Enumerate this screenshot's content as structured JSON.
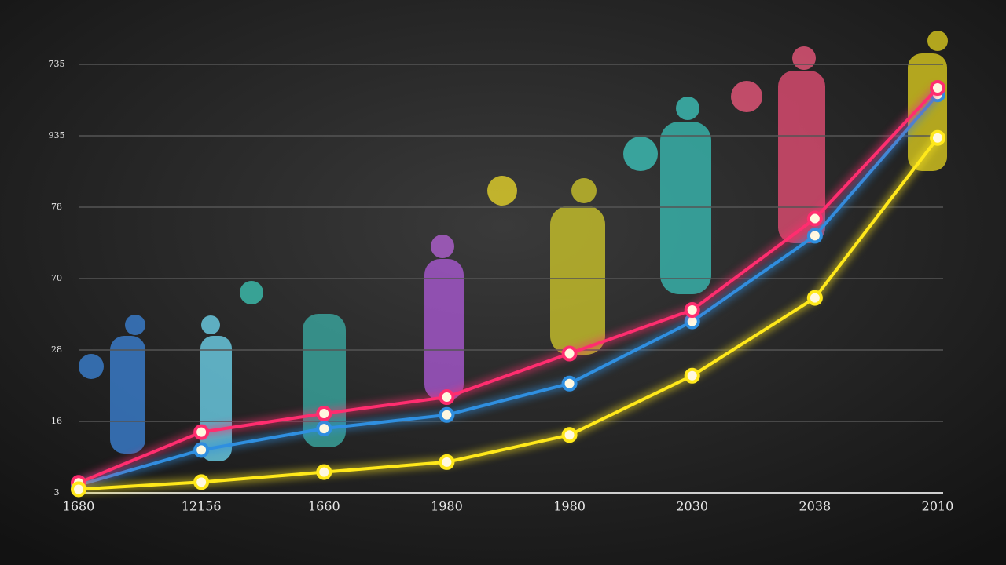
{
  "chart_data": {
    "type": "line",
    "categories": [
      "1680",
      "12156",
      "1660",
      "1980",
      "1980",
      "2030",
      "2038",
      "2010"
    ],
    "ylim": [
      0,
      6
    ],
    "yticks": [
      {
        "value": 0,
        "label": "3"
      },
      {
        "value": 1,
        "label": "16"
      },
      {
        "value": 2,
        "label": "28"
      },
      {
        "value": 3,
        "label": "70"
      },
      {
        "value": 4,
        "label": "78"
      },
      {
        "value": 5,
        "label": "935"
      },
      {
        "value": 6,
        "label": "735"
      }
    ],
    "grid": true,
    "series": [
      {
        "color": "#2f8fe0",
        "values": [
          0.11,
          0.6,
          0.9,
          1.09,
          1.53,
          2.4,
          3.6,
          5.58
        ]
      },
      {
        "color": "#ff2d6f",
        "values": [
          0.14,
          0.85,
          1.11,
          1.34,
          1.95,
          2.56,
          3.84,
          5.67
        ]
      },
      {
        "color": "#ffe81a",
        "values": [
          0.05,
          0.15,
          0.29,
          0.43,
          0.81,
          1.64,
          2.73,
          4.97
        ]
      }
    ]
  }
}
